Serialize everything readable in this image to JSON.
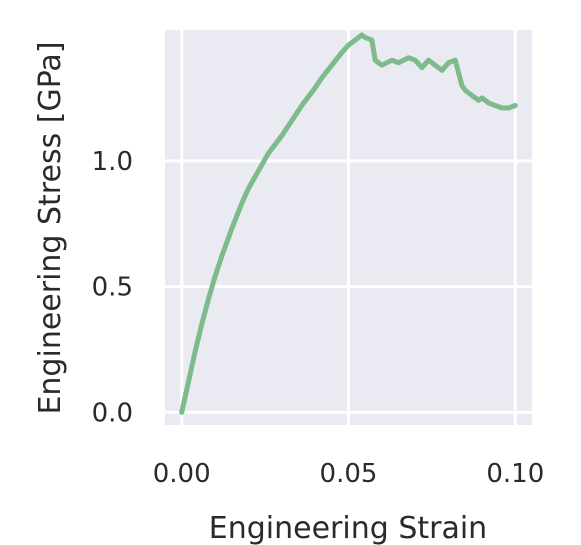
{
  "chart_data": {
    "type": "line",
    "xlabel": "Engineering Strain",
    "ylabel": "Engineering Stress [GPa]",
    "xlim": [
      -0.005,
      0.105
    ],
    "ylim": [
      -0.05,
      1.52
    ],
    "grid": true,
    "x_ticks": [
      {
        "value": 0.0,
        "label": "0.00"
      },
      {
        "value": 0.05,
        "label": "0.05"
      },
      {
        "value": 0.1,
        "label": "0.10"
      }
    ],
    "y_ticks": [
      {
        "value": 0.0,
        "label": "0.0"
      },
      {
        "value": 0.5,
        "label": "0.5"
      },
      {
        "value": 1.0,
        "label": "1.0"
      }
    ],
    "colors": {
      "background": "#eaeaf2",
      "grid": "#ffffff",
      "line": "#7dbb8b"
    },
    "series": [
      {
        "x": [
          0.0,
          0.002,
          0.004,
          0.006,
          0.008,
          0.01,
          0.012,
          0.015,
          0.018,
          0.02,
          0.023,
          0.026,
          0.03,
          0.033,
          0.036,
          0.04,
          0.042,
          0.045,
          0.048,
          0.05,
          0.052,
          0.054,
          0.055,
          0.057,
          0.058,
          0.06,
          0.063,
          0.065,
          0.068,
          0.07,
          0.072,
          0.074,
          0.076,
          0.078,
          0.08,
          0.082,
          0.084,
          0.085,
          0.087,
          0.089,
          0.09,
          0.092,
          0.094,
          0.096,
          0.098,
          0.1
        ],
        "y": [
          0.0,
          0.12,
          0.24,
          0.35,
          0.45,
          0.54,
          0.62,
          0.73,
          0.83,
          0.89,
          0.96,
          1.03,
          1.1,
          1.16,
          1.22,
          1.29,
          1.33,
          1.38,
          1.43,
          1.46,
          1.48,
          1.5,
          1.49,
          1.48,
          1.4,
          1.38,
          1.4,
          1.39,
          1.41,
          1.4,
          1.37,
          1.4,
          1.38,
          1.36,
          1.39,
          1.4,
          1.3,
          1.28,
          1.26,
          1.24,
          1.25,
          1.23,
          1.22,
          1.21,
          1.21,
          1.22
        ]
      }
    ]
  }
}
